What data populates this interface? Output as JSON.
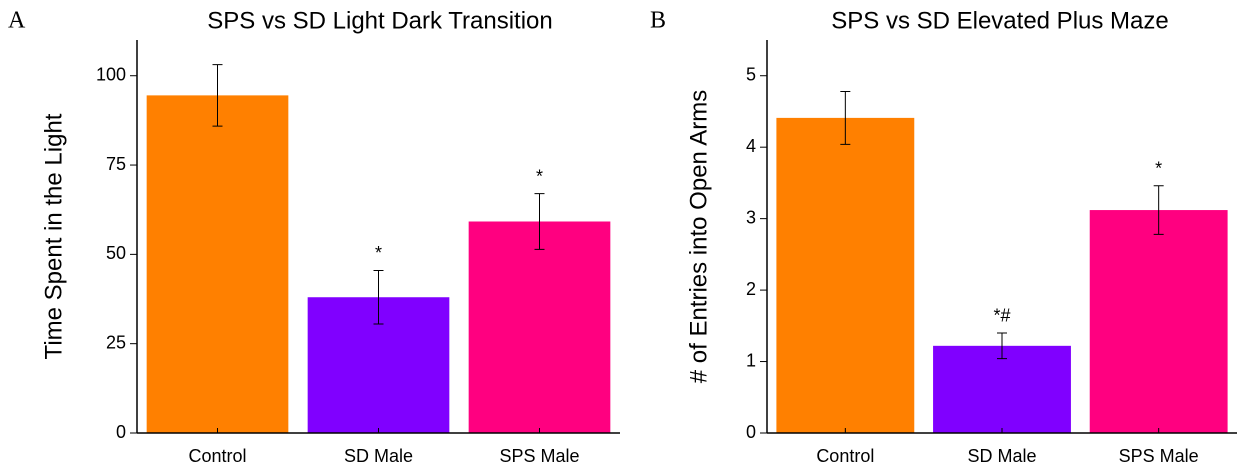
{
  "chart_data": [
    {
      "type": "bar",
      "panel": "A",
      "title": "SPS vs SD Light Dark Transition",
      "y_label": "Time Spent in the Light",
      "categories": [
        "Control",
        "SD Male",
        "SPS Male"
      ],
      "values": [
        94.5,
        38,
        59.2
      ],
      "errors": [
        8.6,
        7.5,
        7.8
      ],
      "colors": [
        "#ff8000",
        "#8000ff",
        "#ff0080"
      ],
      "annotations": [
        null,
        "*",
        "*"
      ],
      "ylim": [
        0,
        110
      ],
      "yticks": [
        0,
        25,
        50,
        75,
        100
      ]
    },
    {
      "type": "bar",
      "panel": "B",
      "title": "SPS vs SD Elevated Plus Maze",
      "y_label": "# of Entries into Open Arms",
      "categories": [
        "Control",
        "SD Male",
        "SPS Male"
      ],
      "values": [
        4.41,
        1.22,
        3.12
      ],
      "errors": [
        0.37,
        0.18,
        0.34
      ],
      "colors": [
        "#ff8000",
        "#8000ff",
        "#ff0080"
      ],
      "annotations": [
        null,
        "*#",
        "*"
      ],
      "ylim": [
        0,
        5.5
      ],
      "yticks": [
        0,
        1,
        2,
        3,
        4,
        5
      ]
    }
  ]
}
